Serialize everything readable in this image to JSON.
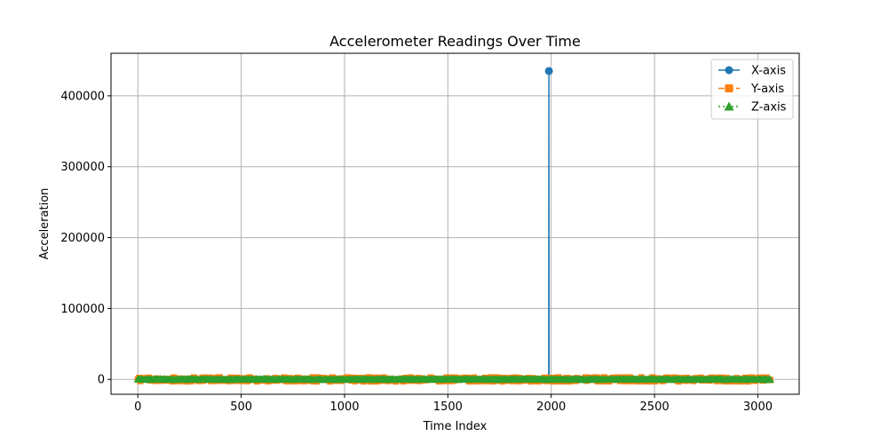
{
  "chart_data": {
    "type": "line",
    "title": "Accelerometer Readings Over Time",
    "xlabel": "Time Index",
    "ylabel": "Acceleration",
    "xlim": [
      -130,
      3200
    ],
    "ylim": [
      -21000,
      460000
    ],
    "xticks": [
      0,
      500,
      1000,
      1500,
      2000,
      2500,
      3000
    ],
    "xtick_labels": [
      "0",
      "500",
      "1000",
      "1500",
      "2000",
      "2500",
      "3000"
    ],
    "yticks": [
      0,
      100000,
      200000,
      300000,
      400000
    ],
    "ytick_labels": [
      "0",
      "100000",
      "200000",
      "300000",
      "400000"
    ],
    "grid": true,
    "legend_position": "top-right",
    "n_points": 3061,
    "series": [
      {
        "name": "X-axis",
        "color": "#1f77b4",
        "marker": "circle",
        "linestyle": "solid",
        "baseline": 0,
        "noise": 600,
        "spikes": [
          {
            "x": 1989,
            "y": 435000
          }
        ]
      },
      {
        "name": "Y-axis",
        "color": "#ff7f0e",
        "marker": "square",
        "linestyle": "dashed",
        "baseline": 0,
        "noise": 3000,
        "spikes": []
      },
      {
        "name": "Z-axis",
        "color": "#2ca02c",
        "marker": "triangle",
        "linestyle": "dotted",
        "baseline": 0,
        "noise": 600,
        "spikes": []
      }
    ]
  }
}
